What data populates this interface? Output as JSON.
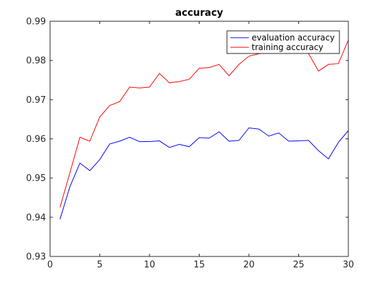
{
  "chart_data": {
    "type": "line",
    "title": "accuracy",
    "xlabel": "",
    "ylabel": "",
    "xlim": [
      0,
      30
    ],
    "ylim": [
      0.93,
      0.99
    ],
    "xticks": [
      0,
      5,
      10,
      15,
      20,
      25,
      30
    ],
    "yticks": [
      0.93,
      0.94,
      0.95,
      0.96,
      0.97,
      0.98,
      0.99
    ],
    "grid": false,
    "legend_position": "top-right",
    "x": [
      1,
      2,
      3,
      4,
      5,
      6,
      7,
      8,
      9,
      10,
      11,
      12,
      13,
      14,
      15,
      16,
      17,
      18,
      19,
      20,
      21,
      22,
      23,
      24,
      25,
      26,
      27,
      28,
      29,
      30
    ],
    "series": [
      {
        "name": "evaluation accuracy",
        "color": "#0000ff",
        "values": [
          0.9395,
          0.9478,
          0.9538,
          0.9519,
          0.9547,
          0.9587,
          0.9594,
          0.9604,
          0.9593,
          0.9593,
          0.9595,
          0.9578,
          0.9586,
          0.958,
          0.9603,
          0.9602,
          0.9618,
          0.9594,
          0.9596,
          0.9628,
          0.9625,
          0.9607,
          0.9615,
          0.9594,
          0.9595,
          0.9596,
          0.957,
          0.9549,
          0.9591,
          0.9621
        ]
      },
      {
        "name": "training accuracy",
        "color": "#ff0000",
        "values": [
          0.9425,
          0.9514,
          0.9604,
          0.9594,
          0.9656,
          0.9685,
          0.9695,
          0.9732,
          0.973,
          0.9732,
          0.9767,
          0.9743,
          0.9746,
          0.9752,
          0.978,
          0.9782,
          0.979,
          0.9761,
          0.979,
          0.9811,
          0.9817,
          0.982,
          0.9823,
          0.982,
          0.9828,
          0.9817,
          0.9773,
          0.979,
          0.9792,
          0.9852
        ]
      }
    ]
  }
}
